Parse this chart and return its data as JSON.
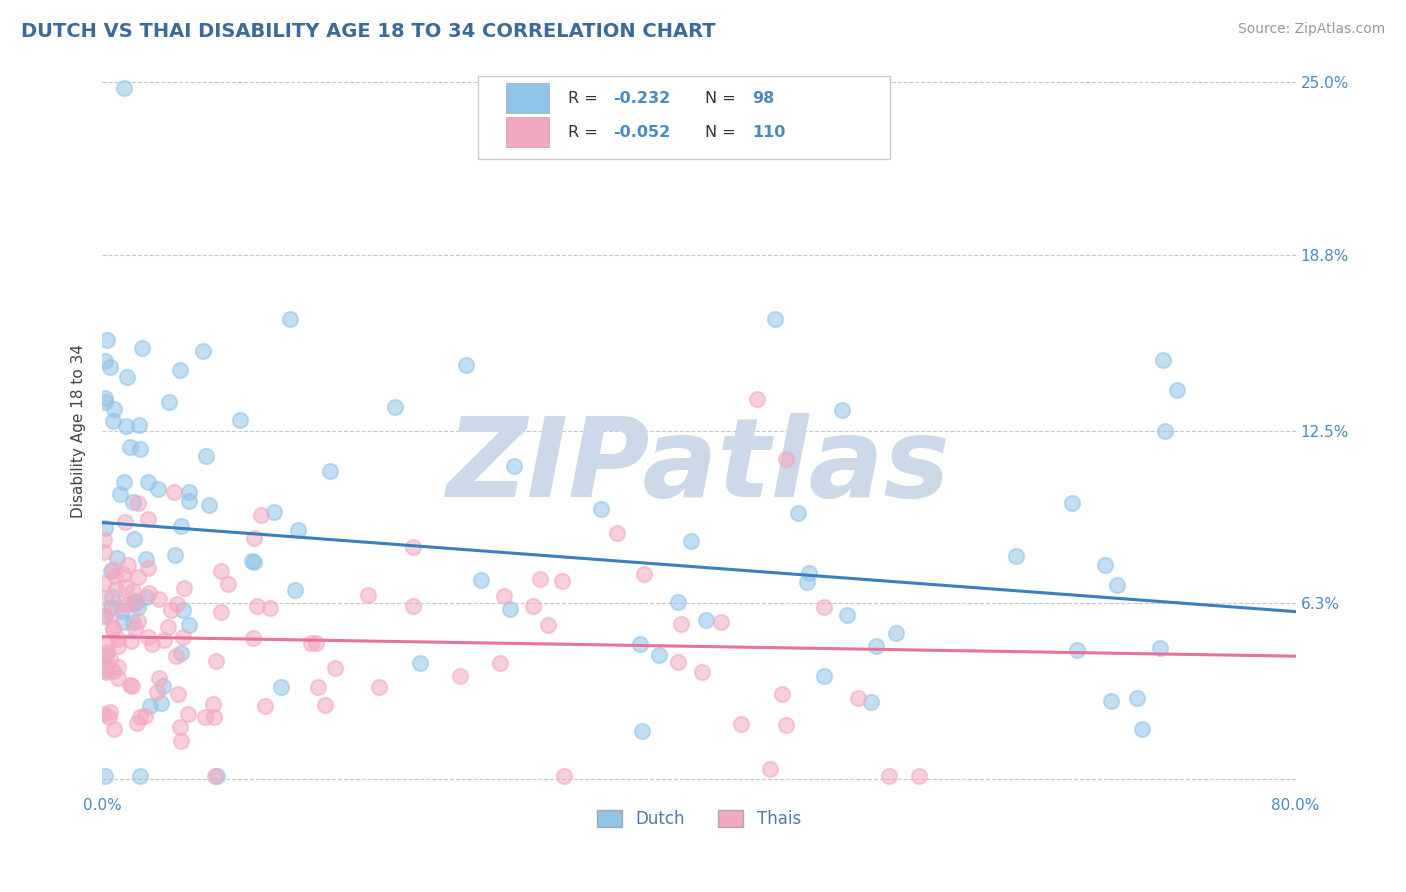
{
  "title": "DUTCH VS THAI DISABILITY AGE 18 TO 34 CORRELATION CHART",
  "source_text": "Source: ZipAtlas.com",
  "ylabel": "Disability Age 18 to 34",
  "xlim": [
    0.0,
    0.8
  ],
  "ylim": [
    -0.005,
    0.255
  ],
  "xticks": [
    0.0,
    0.2,
    0.4,
    0.6,
    0.8
  ],
  "xticklabels": [
    "0.0%",
    "",
    "",
    "",
    "80.0%"
  ],
  "yticks": [
    0.0,
    0.063,
    0.125,
    0.188,
    0.25
  ],
  "yticklabels": [
    "",
    "6.3%",
    "12.5%",
    "18.8%",
    "25.0%"
  ],
  "dutch_R": -0.232,
  "dutch_N": 98,
  "thai_R": -0.052,
  "thai_N": 110,
  "dutch_color": "#90c4e8",
  "thai_color": "#f4a8c0",
  "dutch_line_color": "#3a7fc1",
  "thai_line_color": "#e8729a",
  "legend_label_dutch": "Dutch",
  "legend_label_thai": "Thais",
  "title_color": "#3a6b9a",
  "axis_label_color": "#4a7baa",
  "tick_color": "#4a8abf",
  "source_color": "#999999",
  "watermark_color": "#ccd9e8",
  "watermark_text": "ZIPatlas",
  "background_color": "#ffffff",
  "grid_color": "#c8c8c8",
  "dutch_trend_start": 0.092,
  "dutch_trend_end": 0.06,
  "thai_trend_start": 0.051,
  "thai_trend_end": 0.044
}
